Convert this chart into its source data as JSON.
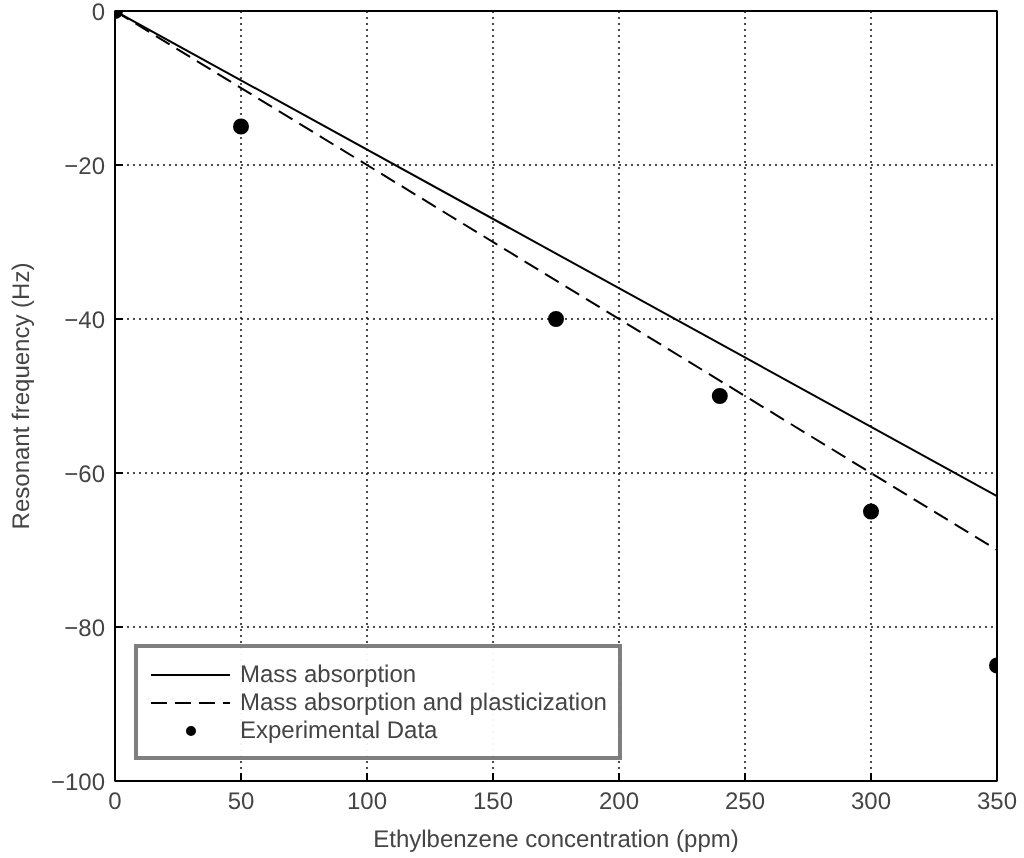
{
  "chart_data": {
    "type": "line",
    "xlabel": "Ethylbenzene concentration (ppm)",
    "ylabel": "Resonant frequency (Hz)",
    "xlim": [
      0,
      350
    ],
    "ylim": [
      -100,
      0
    ],
    "xticks": [
      0,
      50,
      100,
      150,
      200,
      250,
      300,
      350
    ],
    "yticks": [
      -100,
      -80,
      -60,
      -40,
      -20,
      0
    ],
    "grid": true,
    "legend": "bottom left",
    "series": [
      {
        "name": "Mass absorption",
        "color": "#000000",
        "line_style": "solid",
        "x": [
          0,
          350
        ],
        "values": [
          0,
          -63
        ]
      },
      {
        "name": "Mass absorption and plasticization",
        "color": "#000000",
        "line_style": "dashed",
        "x": [
          0,
          350
        ],
        "values": [
          0,
          -70
        ]
      },
      {
        "name": "Experimental Data",
        "type": "scatter",
        "color": "#000000",
        "marker": "circle",
        "x": [
          0,
          50,
          175,
          240,
          300,
          350
        ],
        "values": [
          0,
          -15,
          -40,
          -50,
          -65,
          -85
        ]
      }
    ]
  }
}
